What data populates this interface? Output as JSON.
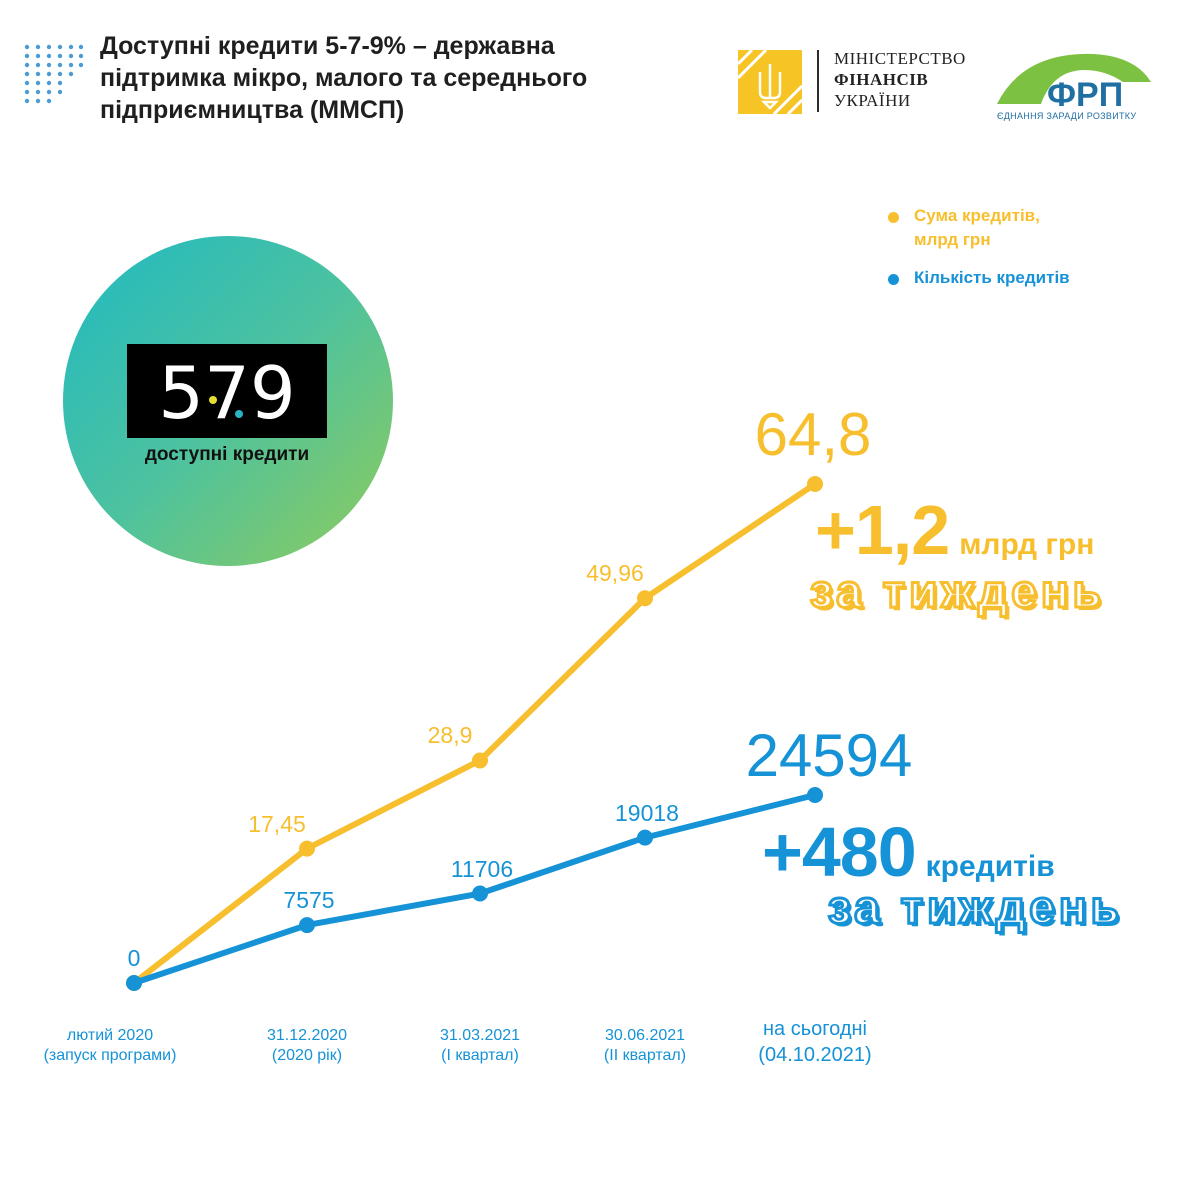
{
  "header": {
    "title_lines": [
      "Доступні кредити 5-7-9% – державна",
      "підтримка мікро, малого та середнього",
      "підприємництва (ММСП)"
    ]
  },
  "logos": {
    "minfin": {
      "line1": "МІНІСТЕРСТВО",
      "line2": "ФІНАНСІВ",
      "line3": "УКРАЇНИ"
    },
    "frp": {
      "name": "ФРП",
      "tagline": "ЄДНАННЯ ЗАРАДИ РОЗВИТКУ"
    }
  },
  "badge": {
    "text": "579",
    "caption": "доступні кредити"
  },
  "legend": {
    "amount_line1": "Сума кредитів,",
    "amount_line2": "млрд грн",
    "count": "Кількість кредитів"
  },
  "highlights": {
    "amount_delta": "+1,2",
    "amount_unit": "млрд грн",
    "count_delta": "+480",
    "count_unit": "кредитів",
    "week": "за тиждень"
  },
  "colors": {
    "amount": "#f7be2e",
    "count": "#1692d6",
    "badge_start": "#20b9c2",
    "badge_end": "#90cb5b"
  },
  "chart_data": {
    "type": "line",
    "categories": [
      [
        "лютий 2020",
        "(запуск програми)"
      ],
      [
        "31.12.2020",
        "(2020 рік)"
      ],
      [
        "31.03.2021",
        "(I квартал)"
      ],
      [
        "30.06.2021",
        "(II квартал)"
      ],
      [
        "на сьогодні",
        "(04.10.2021)"
      ]
    ],
    "series": [
      {
        "name": "Сума кредитів, млрд грн",
        "values": [
          0,
          17.45,
          28.9,
          49.96,
          64.8
        ],
        "labels": [
          "",
          "17,45",
          "28,9",
          "49,96",
          "64,8"
        ]
      },
      {
        "name": "Кількість кредитів",
        "values": [
          0,
          7575,
          11706,
          19018,
          24594
        ],
        "labels": [
          "0",
          "7575",
          "11706",
          "19018",
          "24594"
        ]
      }
    ],
    "grid": false,
    "legend_position": "top-right"
  }
}
